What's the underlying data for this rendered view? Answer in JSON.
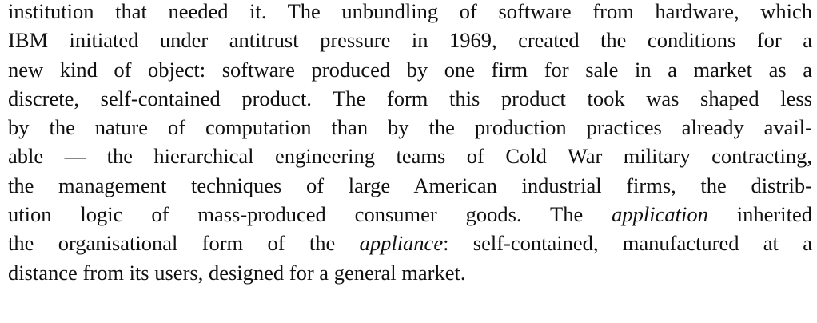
{
  "paragraph": {
    "lines": [
      "institution that needed it. The unbundling of software from hardware, which",
      "IBM initiated under antitrust pressure in 1969, created the conditions for a",
      "new kind of object: software produced by one firm for sale in a market as a",
      "discrete, self-contained product. The form this product took was shaped less",
      "by the nature of computation than by the production practices already avail-",
      "able — the hierarchical engineering teams of Cold War military contracting,",
      "the management techniques of large American industrial firms, the distrib-",
      [
        "ution logic of mass-produced consumer goods. The ",
        "application",
        " inherited"
      ],
      [
        "the organisational form of the ",
        "appliance",
        ": self-contained, manufactured at a"
      ],
      "distance from its users, designed for a general market."
    ]
  }
}
